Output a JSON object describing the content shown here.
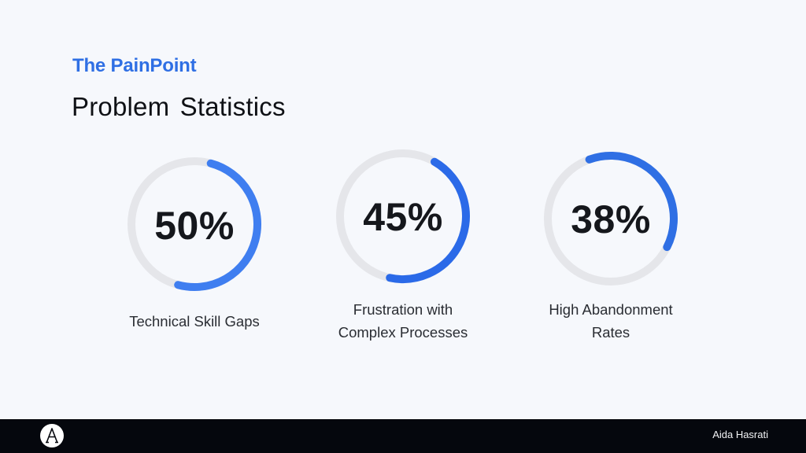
{
  "header": {
    "eyebrow": "The PainPoint",
    "title": "Problem Statistics"
  },
  "stats": [
    {
      "value": 50,
      "value_label": "50%",
      "label_lines": [
        "Technical Skill Gaps"
      ]
    },
    {
      "value": 45,
      "value_label": "45%",
      "label_lines": [
        "Frustration with",
        "Complex Processes"
      ]
    },
    {
      "value": 38,
      "value_label": "38%",
      "label_lines": [
        "High Abandonment",
        "Rates"
      ]
    }
  ],
  "colors": {
    "accent": "#2f6fe4",
    "ring_progress_1": "#3f7ef0",
    "ring_progress_2": "#2b6ae8",
    "ring_progress_3": "#2f6fe4",
    "ring_track": "#e5e6ea",
    "background": "#f6f8fc",
    "footer": "#05070d"
  },
  "footer": {
    "logo_icon": "letter-a-logo-icon",
    "author": "Aida Hasrati"
  }
}
